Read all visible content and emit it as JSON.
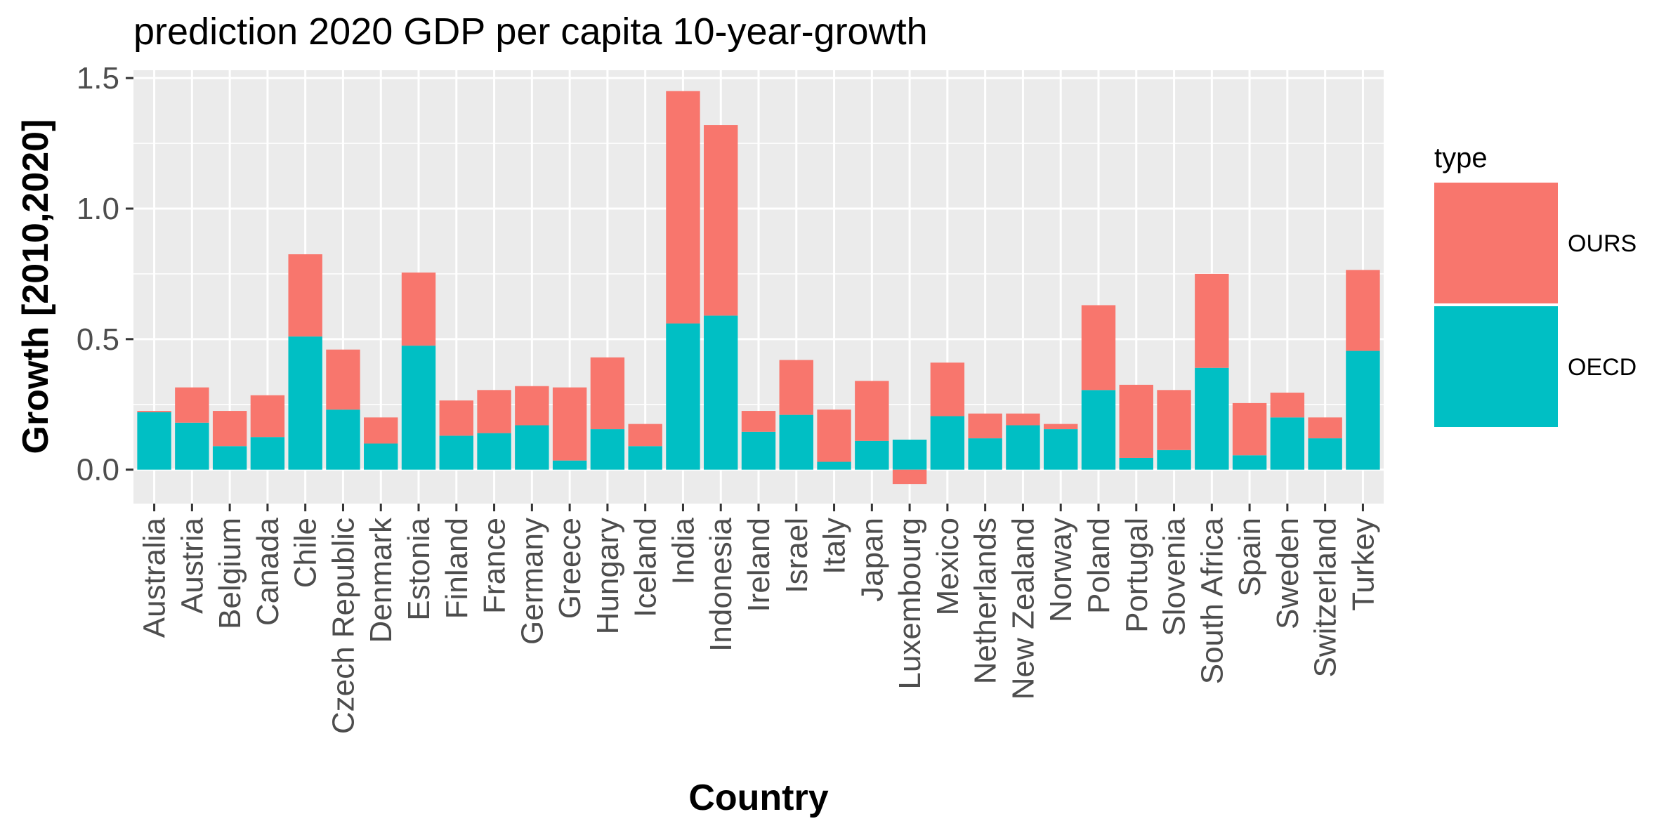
{
  "chart_data": {
    "type": "bar",
    "stacked": true,
    "title": "prediction 2020 GDP per capita 10-year-growth",
    "xlabel": "Country",
    "ylabel": "Growth [2010,2020]",
    "ylim": [
      -0.13,
      1.53
    ],
    "yticks": [
      0.0,
      0.5,
      1.0,
      1.5
    ],
    "ytick_labels": [
      "0.0",
      "0.5",
      "1.0",
      "1.5"
    ],
    "grid": true,
    "legend": {
      "title": "type",
      "position": "right"
    },
    "categories": [
      "Australia",
      "Austria",
      "Belgium",
      "Canada",
      "Chile",
      "Czech Republic",
      "Denmark",
      "Estonia",
      "Finland",
      "France",
      "Germany",
      "Greece",
      "Hungary",
      "Iceland",
      "India",
      "Indonesia",
      "Ireland",
      "Israel",
      "Italy",
      "Japan",
      "Luxembourg",
      "Mexico",
      "Netherlands",
      "New Zealand",
      "Norway",
      "Poland",
      "Portugal",
      "Slovenia",
      "South Africa",
      "Spain",
      "Sweden",
      "Switzerland",
      "Turkey"
    ],
    "series": [
      {
        "name": "OURS",
        "color": "#F8766D",
        "values": [
          0.005,
          0.135,
          0.135,
          0.16,
          0.315,
          0.23,
          0.1,
          0.28,
          0.135,
          0.165,
          0.15,
          0.28,
          0.275,
          0.085,
          0.89,
          0.73,
          0.08,
          0.21,
          0.2,
          0.23,
          -0.055,
          0.205,
          0.095,
          0.045,
          0.02,
          0.325,
          0.28,
          0.23,
          0.36,
          0.2,
          0.095,
          0.08,
          0.31
        ]
      },
      {
        "name": "OECD",
        "color": "#00BFC4",
        "values": [
          0.22,
          0.18,
          0.09,
          0.125,
          0.51,
          0.23,
          0.1,
          0.475,
          0.13,
          0.14,
          0.17,
          0.035,
          0.155,
          0.09,
          0.56,
          0.59,
          0.145,
          0.21,
          0.03,
          0.11,
          0.115,
          0.205,
          0.12,
          0.17,
          0.155,
          0.305,
          0.045,
          0.075,
          0.39,
          0.055,
          0.2,
          0.12,
          0.455
        ]
      }
    ]
  }
}
